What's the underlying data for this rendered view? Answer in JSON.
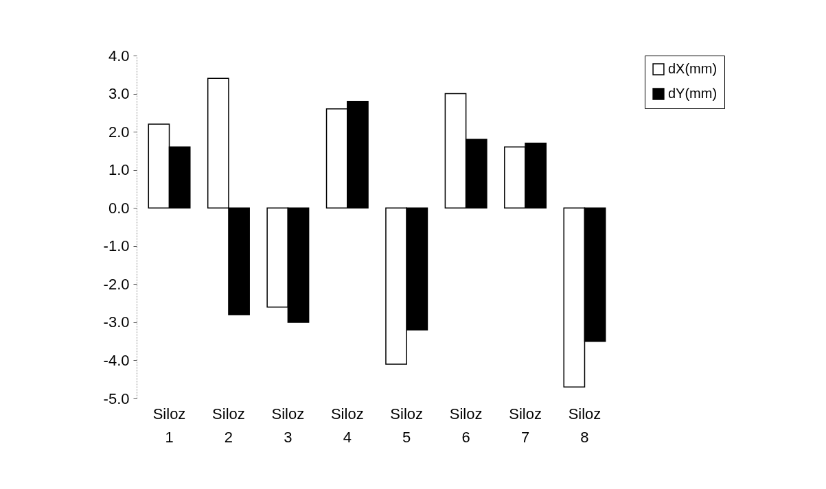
{
  "chart_data": {
    "type": "bar",
    "categories": [
      "Siloz 1",
      "Siloz 2",
      "Siloz 3",
      "Siloz 4",
      "Siloz 5",
      "Siloz 6",
      "Siloz 7",
      "Siloz 8"
    ],
    "series": [
      {
        "name": "dX(mm)",
        "color": "#ffffff",
        "values": [
          2.2,
          3.4,
          -2.6,
          2.6,
          -4.1,
          3.0,
          1.6,
          -4.7
        ]
      },
      {
        "name": "dY(mm)",
        "color": "#000000",
        "values": [
          1.6,
          -2.8,
          -3.0,
          2.8,
          -3.2,
          1.8,
          1.7,
          -3.5
        ]
      }
    ],
    "ylim": [
      -5,
      4
    ],
    "yticks": [
      {
        "value": 4,
        "label": "4.0"
      },
      {
        "value": 3,
        "label": "3.0"
      },
      {
        "value": 2,
        "label": "2.0"
      },
      {
        "value": 1,
        "label": "1.0"
      },
      {
        "value": 0,
        "label": "0.0"
      },
      {
        "value": -1,
        "label": "-1.0"
      },
      {
        "value": -2,
        "label": "-2.0"
      },
      {
        "value": -3,
        "label": "-3.0"
      },
      {
        "value": -4,
        "label": "-4.0"
      },
      {
        "value": -5,
        "label": "-5.0"
      }
    ],
    "grid": false,
    "legend": "right"
  }
}
